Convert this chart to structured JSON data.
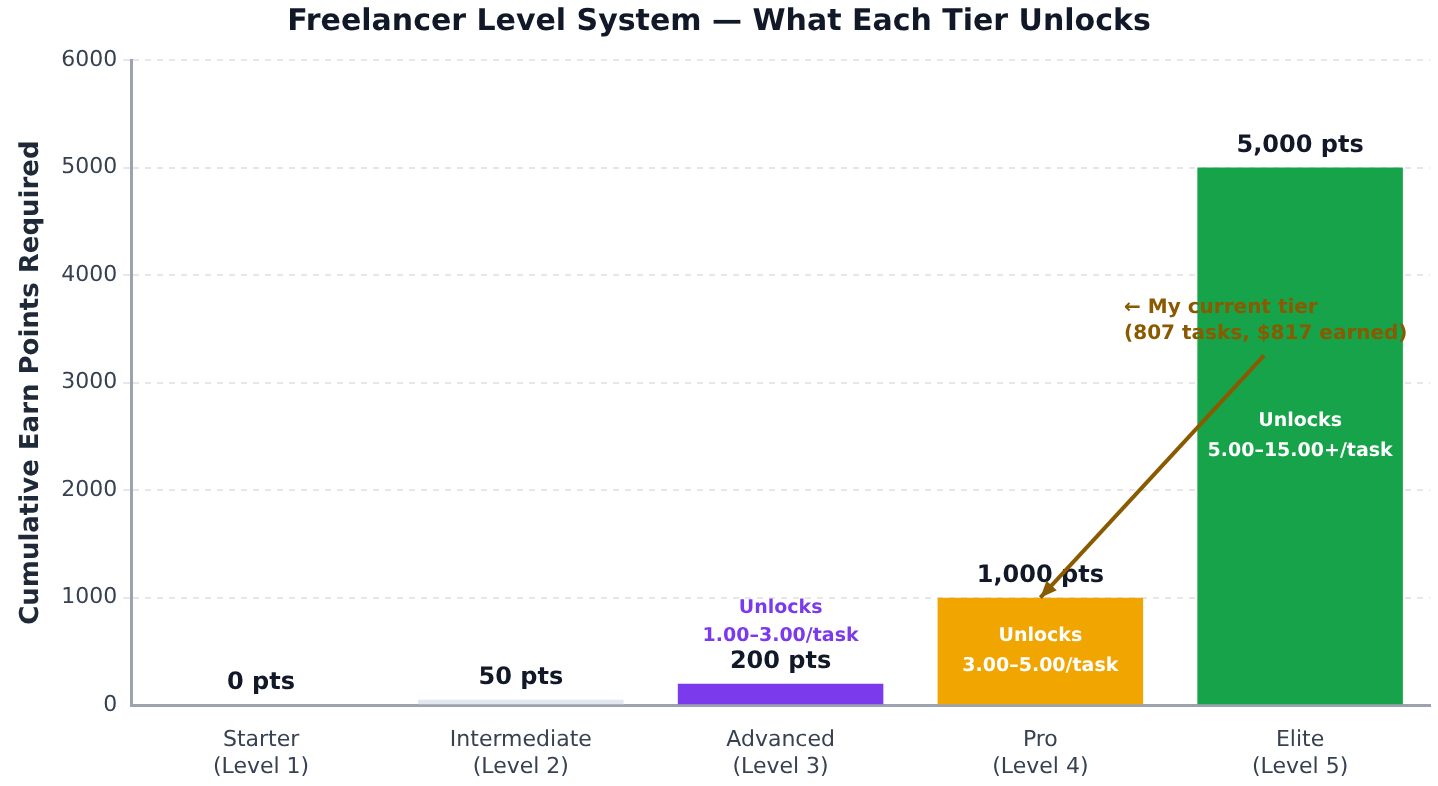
{
  "chart_data": {
    "type": "bar",
    "title": "Freelancer Level System — What Each Tier Unlocks",
    "ylabel": "Cumulative Earn Points Required",
    "categories": [
      "Starter\n(Level 1)",
      "Intermediate\n(Level 2)",
      "Advanced\n(Level 3)",
      "Pro\n(Level 4)",
      "Elite\n(Level 5)"
    ],
    "values": [
      0,
      50,
      200,
      1000,
      5000
    ],
    "colors": [
      "#94a3b8",
      "#e2e8f0",
      "#7c3aed",
      "#f0a500",
      "#16a34a"
    ],
    "value_labels": [
      "0 pts",
      "50 pts",
      "200 pts",
      "1,000 pts",
      "5,000 pts"
    ],
    "ylim": [
      0,
      6000
    ],
    "yticks": [
      0,
      1000,
      2000,
      3000,
      4000,
      5000,
      6000
    ],
    "grid": "y",
    "legend": false,
    "annotations": [
      "Unlocks\n1.00–3.00/task",
      "Unlocks\n3.00–5.00/task",
      "Unlocks\n5.00–15.00+/task",
      {
        "text": "← My current tier\n(807 tasks, $817 earned)",
        "x": "Pro\n(Level 4)",
        "y": 1000
      }
    ]
  }
}
